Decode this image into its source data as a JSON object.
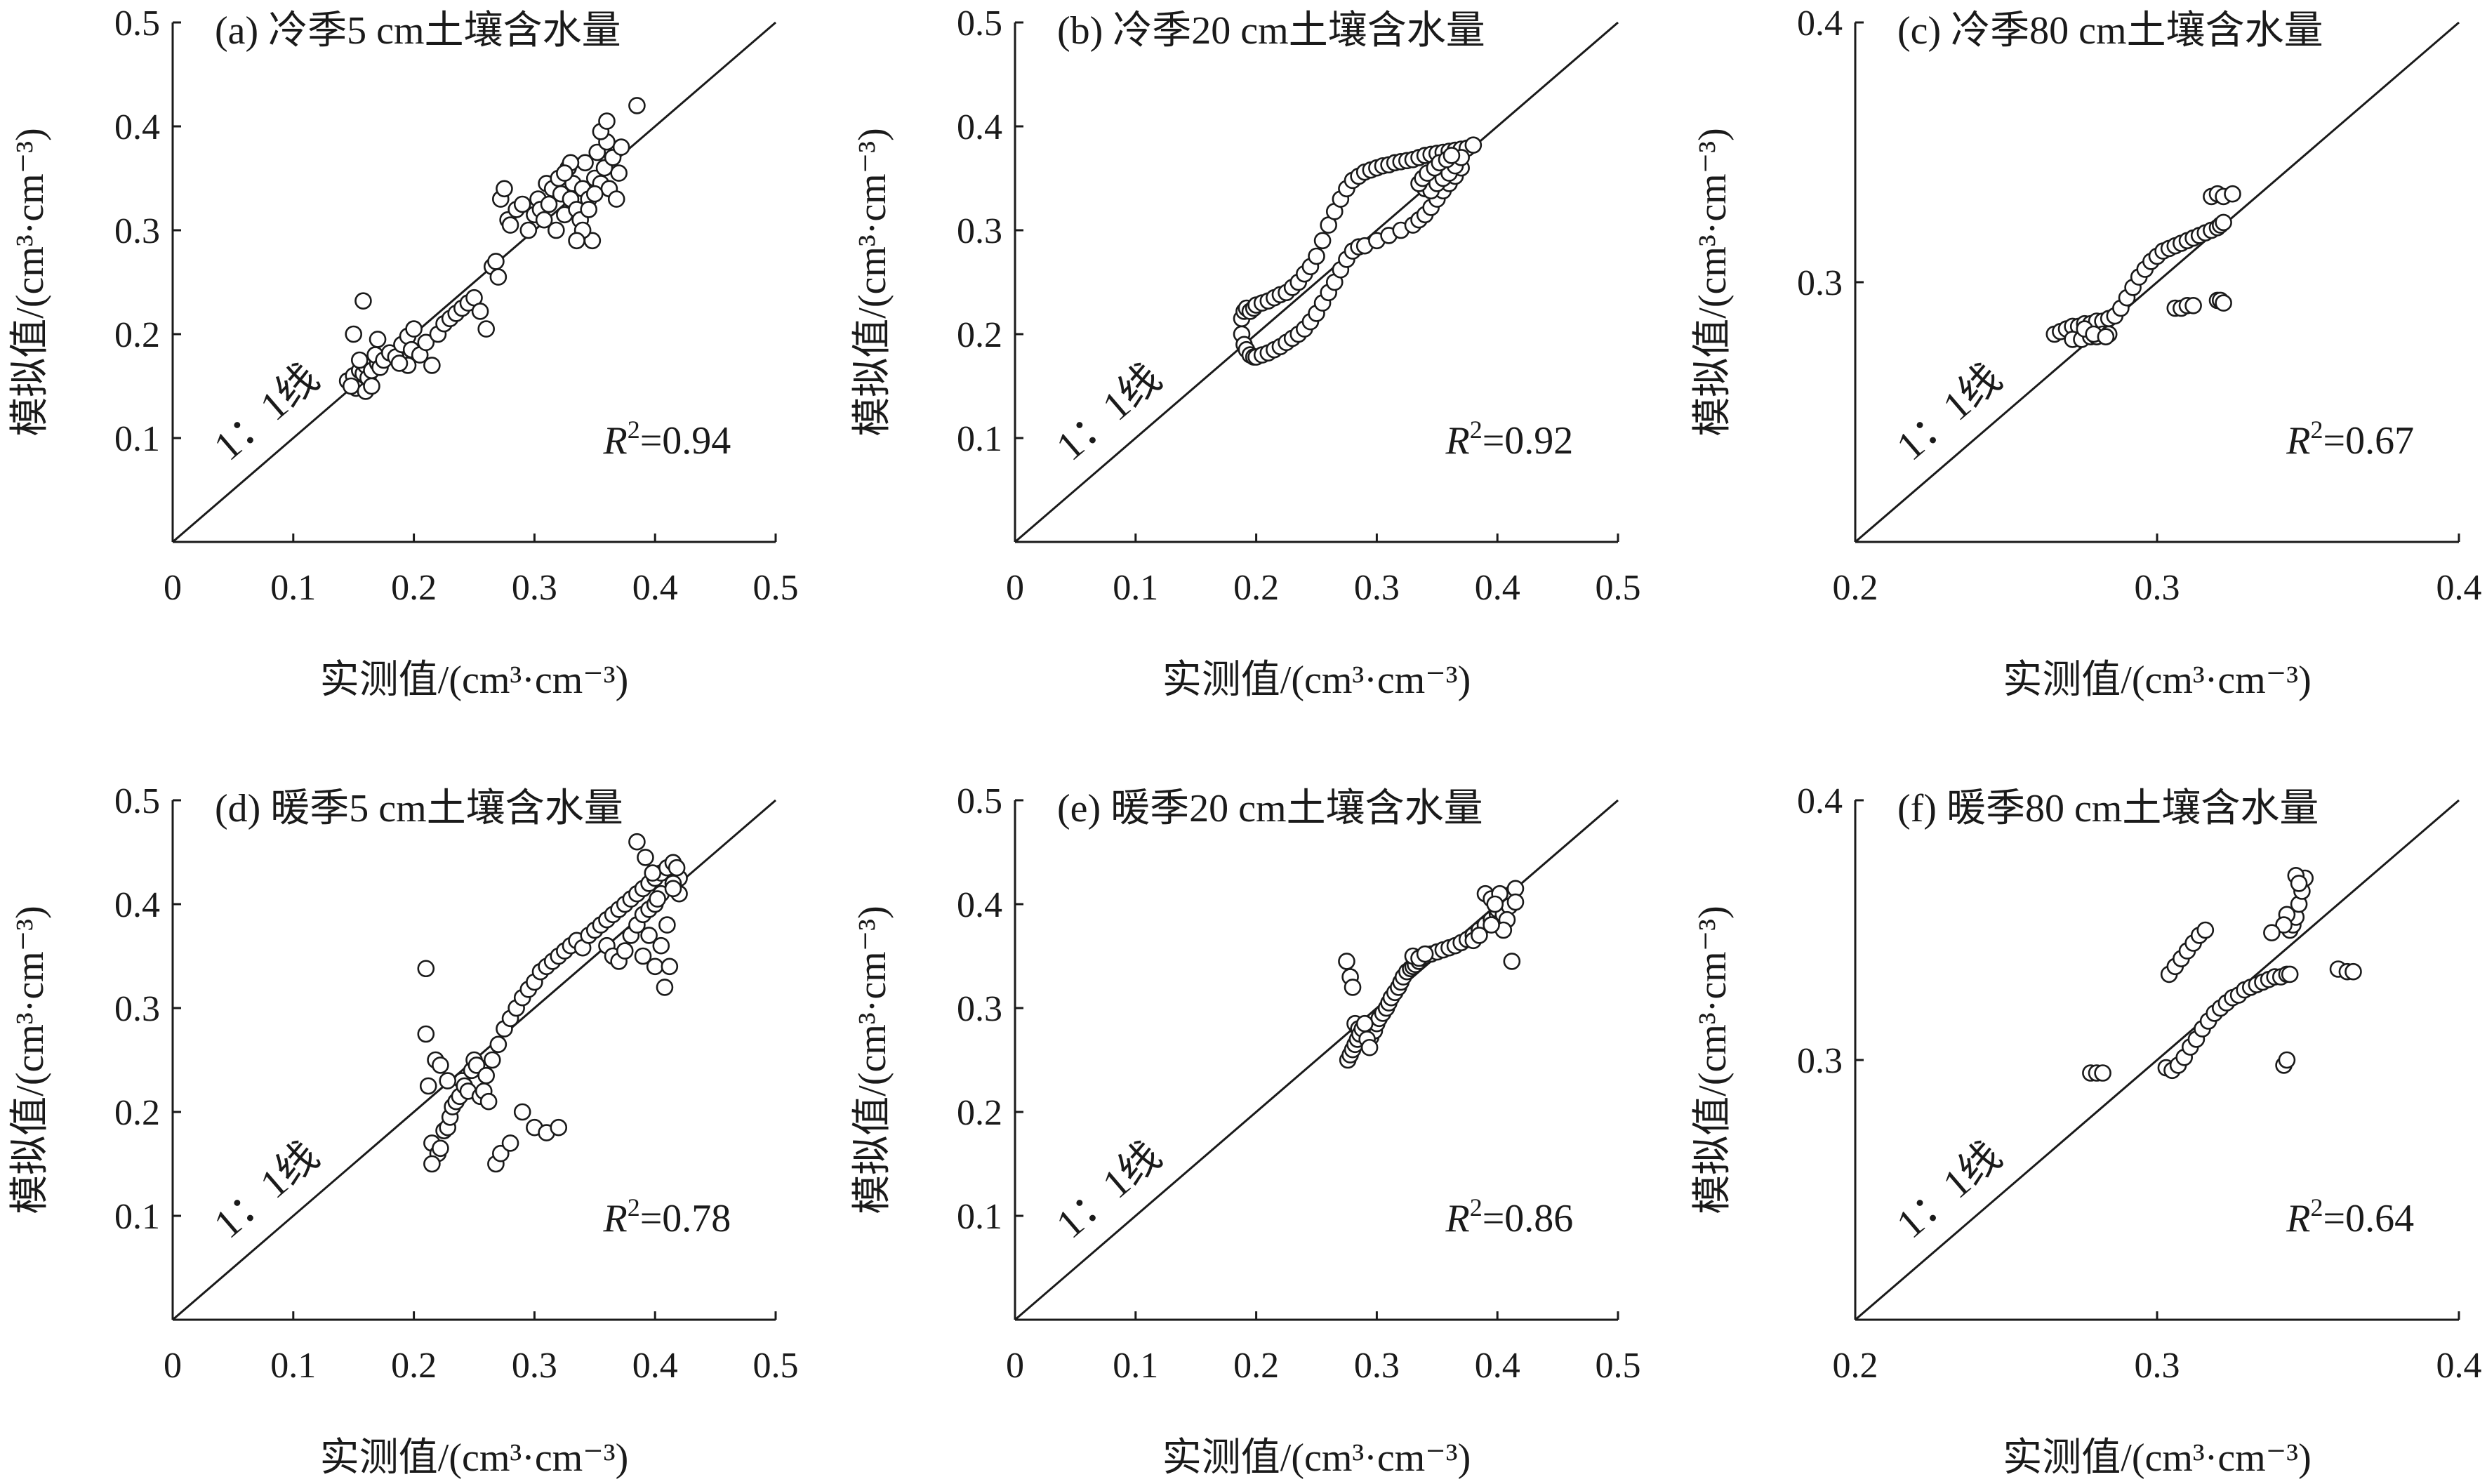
{
  "figure": {
    "xlabel": "实测值/(cm³·cm⁻³)",
    "ylabel": "模拟值/(cm³·cm⁻³)",
    "line_label": "1：1线"
  },
  "chart_data": [
    {
      "type": "scatter",
      "title": "(a) 冷季5 cm土壤含水量",
      "r2_prefix": "R",
      "r2_sup": "2",
      "r2_value": "=0.94",
      "xlim": [
        0,
        0.5
      ],
      "ylim": [
        0,
        0.5
      ],
      "xticks": [
        "0",
        "0.1",
        "0.2",
        "0.3",
        "0.4",
        "0.5"
      ],
      "yticks": [
        "0.1",
        "0.2",
        "0.3",
        "0.4",
        "0.5"
      ],
      "xtick_values": [
        0,
        0.1,
        0.2,
        0.3,
        0.4,
        0.5
      ],
      "ytick_values": [
        0.1,
        0.2,
        0.3,
        0.4,
        0.5
      ],
      "x": [
        0.145,
        0.15,
        0.152,
        0.155,
        0.148,
        0.158,
        0.16,
        0.162,
        0.155,
        0.165,
        0.17,
        0.168,
        0.172,
        0.158,
        0.15,
        0.175,
        0.18,
        0.185,
        0.19,
        0.195,
        0.198,
        0.2,
        0.205,
        0.21,
        0.195,
        0.188,
        0.16,
        0.165,
        0.17,
        0.215,
        0.22,
        0.225,
        0.23,
        0.235,
        0.24,
        0.245,
        0.25,
        0.255,
        0.26,
        0.265,
        0.268,
        0.27,
        0.272,
        0.275,
        0.278,
        0.28,
        0.285,
        0.29,
        0.295,
        0.3,
        0.303,
        0.305,
        0.308,
        0.31,
        0.312,
        0.315,
        0.318,
        0.32,
        0.322,
        0.325,
        0.328,
        0.33,
        0.332,
        0.335,
        0.338,
        0.34,
        0.342,
        0.345,
        0.348,
        0.35,
        0.352,
        0.355,
        0.358,
        0.36,
        0.362,
        0.365,
        0.368,
        0.37,
        0.34,
        0.335,
        0.345,
        0.35,
        0.355,
        0.33,
        0.325,
        0.36,
        0.372,
        0.385
      ],
      "y": [
        0.155,
        0.16,
        0.148,
        0.165,
        0.15,
        0.162,
        0.17,
        0.158,
        0.175,
        0.165,
        0.172,
        0.18,
        0.168,
        0.232,
        0.2,
        0.175,
        0.182,
        0.178,
        0.19,
        0.198,
        0.185,
        0.205,
        0.18,
        0.192,
        0.17,
        0.172,
        0.145,
        0.15,
        0.195,
        0.17,
        0.2,
        0.21,
        0.215,
        0.22,
        0.225,
        0.23,
        0.235,
        0.222,
        0.205,
        0.265,
        0.27,
        0.255,
        0.33,
        0.34,
        0.31,
        0.305,
        0.32,
        0.325,
        0.3,
        0.315,
        0.33,
        0.32,
        0.31,
        0.345,
        0.325,
        0.34,
        0.3,
        0.35,
        0.335,
        0.315,
        0.36,
        0.33,
        0.345,
        0.32,
        0.31,
        0.34,
        0.365,
        0.33,
        0.29,
        0.35,
        0.375,
        0.345,
        0.36,
        0.385,
        0.34,
        0.37,
        0.33,
        0.355,
        0.3,
        0.29,
        0.32,
        0.335,
        0.395,
        0.365,
        0.355,
        0.405,
        0.38,
        0.42
      ]
    },
    {
      "type": "scatter",
      "title": "(b) 冷季20 cm土壤含水量",
      "r2_prefix": "R",
      "r2_sup": "2",
      "r2_value": "=0.92",
      "xlim": [
        0,
        0.5
      ],
      "ylim": [
        0,
        0.5
      ],
      "xticks": [
        "0",
        "0.1",
        "0.2",
        "0.3",
        "0.4",
        "0.5"
      ],
      "yticks": [
        "0.1",
        "0.2",
        "0.3",
        "0.4",
        "0.5"
      ],
      "xtick_values": [
        0,
        0.1,
        0.2,
        0.3,
        0.4,
        0.5
      ],
      "ytick_values": [
        0.1,
        0.2,
        0.3,
        0.4,
        0.5
      ],
      "x": [
        0.188,
        0.19,
        0.192,
        0.195,
        0.198,
        0.2,
        0.205,
        0.21,
        0.215,
        0.22,
        0.225,
        0.23,
        0.235,
        0.24,
        0.245,
        0.25,
        0.255,
        0.26,
        0.265,
        0.27,
        0.275,
        0.28,
        0.285,
        0.29,
        0.295,
        0.3,
        0.305,
        0.31,
        0.315,
        0.32,
        0.325,
        0.33,
        0.335,
        0.34,
        0.345,
        0.35,
        0.355,
        0.36,
        0.365,
        0.37,
        0.375,
        0.38,
        0.188,
        0.19,
        0.192,
        0.195,
        0.198,
        0.2,
        0.205,
        0.21,
        0.215,
        0.22,
        0.225,
        0.23,
        0.235,
        0.24,
        0.245,
        0.25,
        0.255,
        0.26,
        0.265,
        0.27,
        0.275,
        0.28,
        0.285,
        0.29,
        0.3,
        0.31,
        0.32,
        0.33,
        0.335,
        0.34,
        0.345,
        0.35,
        0.355,
        0.36,
        0.365,
        0.37,
        0.34,
        0.345,
        0.35,
        0.355,
        0.36,
        0.365,
        0.37,
        0.335,
        0.338,
        0.342,
        0.348,
        0.352,
        0.358,
        0.362
      ],
      "y": [
        0.215,
        0.222,
        0.225,
        0.222,
        0.225,
        0.228,
        0.23,
        0.232,
        0.235,
        0.238,
        0.24,
        0.245,
        0.25,
        0.258,
        0.265,
        0.275,
        0.29,
        0.305,
        0.318,
        0.33,
        0.34,
        0.348,
        0.352,
        0.356,
        0.358,
        0.36,
        0.362,
        0.363,
        0.365,
        0.366,
        0.367,
        0.368,
        0.37,
        0.372,
        0.373,
        0.374,
        0.375,
        0.376,
        0.377,
        0.378,
        0.379,
        0.382,
        0.2,
        0.19,
        0.185,
        0.18,
        0.178,
        0.178,
        0.18,
        0.182,
        0.185,
        0.188,
        0.192,
        0.196,
        0.2,
        0.205,
        0.212,
        0.22,
        0.23,
        0.24,
        0.25,
        0.262,
        0.272,
        0.28,
        0.284,
        0.285,
        0.29,
        0.295,
        0.3,
        0.305,
        0.31,
        0.315,
        0.322,
        0.33,
        0.338,
        0.345,
        0.352,
        0.36,
        0.34,
        0.338,
        0.345,
        0.35,
        0.355,
        0.362,
        0.37,
        0.345,
        0.35,
        0.355,
        0.36,
        0.365,
        0.368,
        0.372
      ]
    },
    {
      "type": "scatter",
      "title": "(c) 冷季80 cm土壤含水量",
      "r2_prefix": "R",
      "r2_sup": "2",
      "r2_value": "=0.67",
      "xlim": [
        0.2,
        0.4
      ],
      "ylim": [
        0.2,
        0.4
      ],
      "xticks": [
        "0.2",
        "0.3",
        "0.4"
      ],
      "yticks": [
        "0.3",
        "0.4"
      ],
      "xtick_values": [
        0.2,
        0.3,
        0.4
      ],
      "ytick_values": [
        0.3,
        0.4
      ],
      "x": [
        0.266,
        0.268,
        0.27,
        0.272,
        0.274,
        0.276,
        0.278,
        0.28,
        0.282,
        0.284,
        0.286,
        0.288,
        0.29,
        0.292,
        0.294,
        0.296,
        0.298,
        0.3,
        0.302,
        0.304,
        0.306,
        0.308,
        0.31,
        0.312,
        0.314,
        0.316,
        0.318,
        0.32,
        0.321,
        0.322,
        0.318,
        0.32,
        0.322,
        0.325,
        0.272,
        0.275,
        0.278,
        0.28,
        0.282,
        0.284,
        0.306,
        0.308,
        0.31,
        0.312,
        0.32,
        0.321,
        0.322,
        0.276,
        0.279,
        0.283
      ],
      "y": [
        0.28,
        0.281,
        0.282,
        0.283,
        0.283,
        0.284,
        0.284,
        0.285,
        0.285,
        0.286,
        0.287,
        0.29,
        0.294,
        0.298,
        0.302,
        0.305,
        0.308,
        0.31,
        0.312,
        0.313,
        0.314,
        0.315,
        0.316,
        0.317,
        0.318,
        0.319,
        0.32,
        0.321,
        0.322,
        0.323,
        0.333,
        0.334,
        0.333,
        0.334,
        0.278,
        0.278,
        0.279,
        0.279,
        0.28,
        0.28,
        0.29,
        0.29,
        0.291,
        0.291,
        0.293,
        0.293,
        0.292,
        0.282,
        0.28,
        0.279
      ]
    },
    {
      "type": "scatter",
      "title": "(d) 暖季5 cm土壤含水量",
      "r2_prefix": "R",
      "r2_sup": "2",
      "r2_value": "=0.78",
      "xlim": [
        0,
        0.5
      ],
      "ylim": [
        0,
        0.5
      ],
      "xticks": [
        "0",
        "0.1",
        "0.2",
        "0.3",
        "0.4",
        "0.5"
      ],
      "yticks": [
        "0.1",
        "0.2",
        "0.3",
        "0.4",
        "0.5"
      ],
      "xtick_values": [
        0,
        0.1,
        0.2,
        0.3,
        0.4,
        0.5
      ],
      "ytick_values": [
        0.1,
        0.2,
        0.3,
        0.4,
        0.5
      ],
      "x": [
        0.21,
        0.212,
        0.215,
        0.218,
        0.22,
        0.222,
        0.225,
        0.228,
        0.23,
        0.232,
        0.235,
        0.238,
        0.24,
        0.242,
        0.245,
        0.248,
        0.25,
        0.252,
        0.255,
        0.258,
        0.26,
        0.262,
        0.265,
        0.27,
        0.275,
        0.28,
        0.285,
        0.29,
        0.295,
        0.3,
        0.305,
        0.31,
        0.315,
        0.32,
        0.325,
        0.33,
        0.335,
        0.34,
        0.345,
        0.35,
        0.355,
        0.36,
        0.365,
        0.37,
        0.375,
        0.38,
        0.385,
        0.39,
        0.395,
        0.4,
        0.405,
        0.41,
        0.415,
        0.42,
        0.36,
        0.365,
        0.37,
        0.375,
        0.38,
        0.385,
        0.39,
        0.395,
        0.4,
        0.405,
        0.41,
        0.415,
        0.42,
        0.39,
        0.395,
        0.4,
        0.405,
        0.408,
        0.412,
        0.268,
        0.272,
        0.28,
        0.29,
        0.3,
        0.31,
        0.32,
        0.21,
        0.215,
        0.222,
        0.228,
        0.385,
        0.392,
        0.398,
        0.415,
        0.418,
        0.402
      ],
      "y": [
        0.338,
        0.225,
        0.17,
        0.25,
        0.16,
        0.165,
        0.182,
        0.185,
        0.195,
        0.205,
        0.21,
        0.215,
        0.23,
        0.225,
        0.22,
        0.24,
        0.25,
        0.245,
        0.215,
        0.22,
        0.235,
        0.21,
        0.25,
        0.265,
        0.28,
        0.29,
        0.3,
        0.31,
        0.318,
        0.325,
        0.335,
        0.34,
        0.345,
        0.35,
        0.355,
        0.36,
        0.365,
        0.358,
        0.37,
        0.375,
        0.38,
        0.385,
        0.39,
        0.395,
        0.4,
        0.405,
        0.41,
        0.415,
        0.42,
        0.425,
        0.43,
        0.435,
        0.44,
        0.425,
        0.36,
        0.35,
        0.345,
        0.355,
        0.37,
        0.38,
        0.39,
        0.395,
        0.4,
        0.41,
        0.38,
        0.42,
        0.41,
        0.35,
        0.37,
        0.34,
        0.36,
        0.32,
        0.34,
        0.15,
        0.16,
        0.17,
        0.2,
        0.185,
        0.18,
        0.185,
        0.275,
        0.15,
        0.245,
        0.23,
        0.46,
        0.445,
        0.43,
        0.415,
        0.435,
        0.405
      ]
    },
    {
      "type": "scatter",
      "title": "(e) 暖季20 cm土壤含水量",
      "r2_prefix": "R",
      "r2_sup": "2",
      "r2_value": "=0.86",
      "xlim": [
        0,
        0.5
      ],
      "ylim": [
        0,
        0.5
      ],
      "xticks": [
        "0",
        "0.1",
        "0.2",
        "0.3",
        "0.4",
        "0.5"
      ],
      "yticks": [
        "0.1",
        "0.2",
        "0.3",
        "0.4",
        "0.5"
      ],
      "xtick_values": [
        0,
        0.1,
        0.2,
        0.3,
        0.4,
        0.5
      ],
      "ytick_values": [
        0.1,
        0.2,
        0.3,
        0.4,
        0.5
      ],
      "x": [
        0.275,
        0.278,
        0.28,
        0.282,
        0.285,
        0.288,
        0.29,
        0.292,
        0.295,
        0.298,
        0.3,
        0.302,
        0.305,
        0.308,
        0.31,
        0.312,
        0.315,
        0.318,
        0.32,
        0.322,
        0.325,
        0.328,
        0.33,
        0.332,
        0.335,
        0.338,
        0.34,
        0.345,
        0.35,
        0.355,
        0.36,
        0.365,
        0.37,
        0.375,
        0.38,
        0.385,
        0.39,
        0.395,
        0.4,
        0.405,
        0.408,
        0.41,
        0.412,
        0.415,
        0.276,
        0.278,
        0.28,
        0.282,
        0.284,
        0.286,
        0.288,
        0.29,
        0.292,
        0.294,
        0.38,
        0.385,
        0.39,
        0.395,
        0.4,
        0.405,
        0.41,
        0.415,
        0.412,
        0.408,
        0.405,
        0.402,
        0.398,
        0.395,
        0.33,
        0.335,
        0.34
      ],
      "y": [
        0.345,
        0.33,
        0.32,
        0.285,
        0.28,
        0.275,
        0.27,
        0.268,
        0.272,
        0.278,
        0.285,
        0.29,
        0.295,
        0.3,
        0.305,
        0.31,
        0.315,
        0.32,
        0.325,
        0.33,
        0.335,
        0.338,
        0.34,
        0.342,
        0.345,
        0.348,
        0.35,
        0.352,
        0.354,
        0.356,
        0.358,
        0.36,
        0.363,
        0.366,
        0.37,
        0.375,
        0.38,
        0.385,
        0.39,
        0.395,
        0.4,
        0.405,
        0.41,
        0.415,
        0.25,
        0.255,
        0.26,
        0.265,
        0.27,
        0.275,
        0.28,
        0.285,
        0.27,
        0.262,
        0.365,
        0.37,
        0.41,
        0.405,
        0.395,
        0.39,
        0.398,
        0.402,
        0.345,
        0.385,
        0.375,
        0.41,
        0.4,
        0.38,
        0.35,
        0.348,
        0.352
      ]
    },
    {
      "type": "scatter",
      "title": "(f) 暖季80 cm土壤含水量",
      "r2_prefix": "R",
      "r2_sup": "2",
      "r2_value": "=0.64",
      "xlim": [
        0.2,
        0.4
      ],
      "ylim": [
        0.2,
        0.4
      ],
      "xticks": [
        "0.2",
        "0.3",
        "0.4"
      ],
      "yticks": [
        "0.3",
        "0.4"
      ],
      "xtick_values": [
        0.2,
        0.3,
        0.4
      ],
      "ytick_values": [
        0.3,
        0.4
      ],
      "x": [
        0.303,
        0.305,
        0.307,
        0.309,
        0.311,
        0.313,
        0.315,
        0.317,
        0.319,
        0.321,
        0.323,
        0.325,
        0.327,
        0.329,
        0.331,
        0.333,
        0.335,
        0.337,
        0.339,
        0.341,
        0.343,
        0.344,
        0.304,
        0.306,
        0.308,
        0.31,
        0.312,
        0.314,
        0.316,
        0.344,
        0.345,
        0.346,
        0.347,
        0.348,
        0.349,
        0.343,
        0.342,
        0.346,
        0.347,
        0.278,
        0.28,
        0.282,
        0.36,
        0.363,
        0.365,
        0.342,
        0.343,
        0.338
      ],
      "y": [
        0.297,
        0.296,
        0.298,
        0.301,
        0.305,
        0.308,
        0.312,
        0.315,
        0.318,
        0.32,
        0.322,
        0.324,
        0.325,
        0.327,
        0.328,
        0.329,
        0.33,
        0.331,
        0.332,
        0.332,
        0.333,
        0.333,
        0.333,
        0.336,
        0.339,
        0.342,
        0.345,
        0.348,
        0.35,
        0.35,
        0.352,
        0.355,
        0.36,
        0.365,
        0.37,
        0.356,
        0.352,
        0.371,
        0.368,
        0.295,
        0.295,
        0.295,
        0.335,
        0.334,
        0.334,
        0.298,
        0.3,
        0.349
      ]
    }
  ]
}
